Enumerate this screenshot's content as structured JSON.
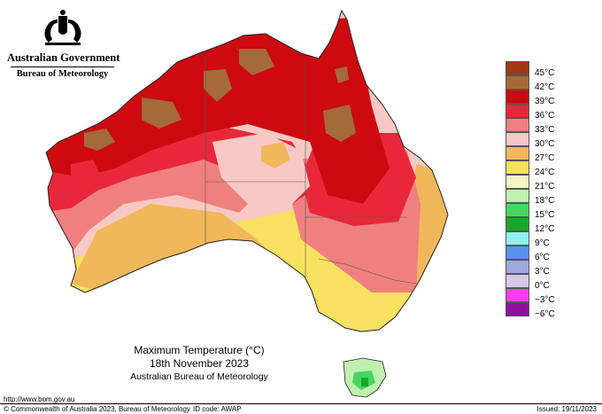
{
  "header": {
    "government": "Australian Government",
    "bureau": "Bureau of Meteorology"
  },
  "legend": {
    "items": [
      {
        "label": "45°C",
        "color": "#9c3a10"
      },
      {
        "label": "42°C",
        "color": "#a46a3a"
      },
      {
        "label": "39°C",
        "color": "#cc0a10"
      },
      {
        "label": "36°C",
        "color": "#e8283a"
      },
      {
        "label": "33°C",
        "color": "#f08080"
      },
      {
        "label": "30°C",
        "color": "#f8c8c4"
      },
      {
        "label": "27°C",
        "color": "#f0b85a"
      },
      {
        "label": "24°C",
        "color": "#f8e060"
      },
      {
        "label": "21°C",
        "color": "#f4f4c8"
      },
      {
        "label": "18°C",
        "color": "#c0f0b0"
      },
      {
        "label": "15°C",
        "color": "#44d860"
      },
      {
        "label": "12°C",
        "color": "#18a828"
      },
      {
        "label": "9°C",
        "color": "#90f0f0"
      },
      {
        "label": "6°C",
        "color": "#5a90f0"
      },
      {
        "label": "3°C",
        "color": "#a0a8e0"
      },
      {
        "label": "0°C",
        "color": "#d8c8e8"
      },
      {
        "label": "−3°C",
        "color": "#f040f0"
      },
      {
        "label": "−6°C",
        "color": "#9010a0"
      }
    ]
  },
  "title": {
    "main": "Maximum Temperature (°C)",
    "date": "18th November 2023",
    "org": "Australian Bureau of Meteorology"
  },
  "footer": {
    "url": "http://www.bom.gov.au",
    "copyright": "© Commonwealth of Australia 2023, Bureau of Meteorology",
    "id_code": "ID code: AWAP",
    "issued": "Issued: 19/11/2023"
  }
}
